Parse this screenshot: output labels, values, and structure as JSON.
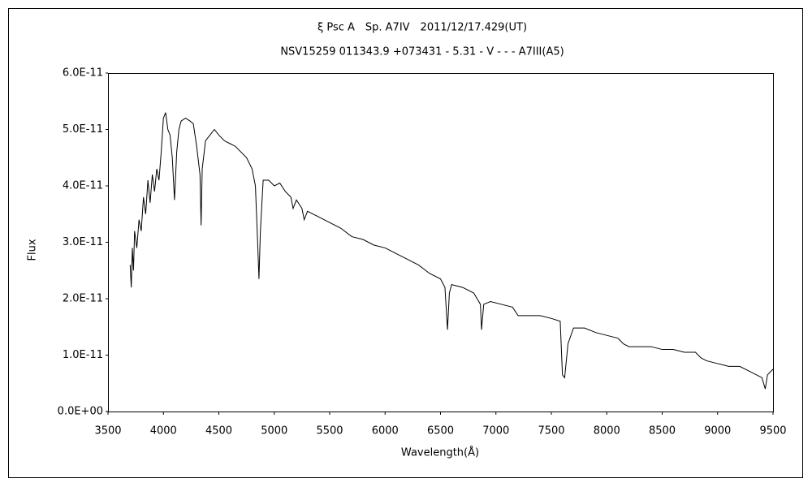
{
  "chart_data": {
    "type": "line",
    "title": "ξ Psc A　Sp. A7IV　2011/12/17.429(UT)",
    "subtitle": "NSV15259 011343.9 +073431 - 5.31 - V - - - A7III(A5)",
    "x_label": "Wavelength(Å)",
    "y_label": "Flux",
    "x": [
      3700,
      3710,
      3720,
      3730,
      3740,
      3760,
      3780,
      3800,
      3820,
      3840,
      3860,
      3880,
      3900,
      3920,
      3940,
      3960,
      3980,
      4000,
      4020,
      4040,
      4060,
      4080,
      4100,
      4120,
      4140,
      4160,
      4200,
      4240,
      4270,
      4300,
      4330,
      4340,
      4350,
      4380,
      4420,
      4460,
      4500,
      4550,
      4600,
      4650,
      4700,
      4750,
      4800,
      4830,
      4850,
      4862,
      4875,
      4900,
      4950,
      5000,
      5050,
      5100,
      5150,
      5170,
      5200,
      5250,
      5270,
      5300,
      5400,
      5500,
      5600,
      5700,
      5800,
      5900,
      6000,
      6100,
      6200,
      6300,
      6400,
      6500,
      6540,
      6563,
      6580,
      6600,
      6700,
      6800,
      6860,
      6870,
      6890,
      6950,
      7050,
      7150,
      7200,
      7300,
      7400,
      7500,
      7580,
      7600,
      7620,
      7650,
      7700,
      7800,
      7900,
      8000,
      8100,
      8150,
      8200,
      8300,
      8400,
      8500,
      8600,
      8700,
      8800,
      8850,
      8900,
      9000,
      9100,
      9200,
      9300,
      9400,
      9430,
      9450,
      9500
    ],
    "series": [
      {
        "name": "Flux",
        "color": "#000000",
        "values": [
          2.6e-11,
          2.2e-11,
          2.9e-11,
          2.5e-11,
          3.2e-11,
          2.9e-11,
          3.4e-11,
          3.2e-11,
          3.8e-11,
          3.5e-11,
          4.1e-11,
          3.7e-11,
          4.2e-11,
          3.9e-11,
          4.3e-11,
          4.1e-11,
          4.6e-11,
          5.2e-11,
          5.3e-11,
          5e-11,
          4.9e-11,
          4.5e-11,
          3.75e-11,
          4.6e-11,
          5e-11,
          5.15e-11,
          5.2e-11,
          5.15e-11,
          5.1e-11,
          4.7e-11,
          4.2e-11,
          3.3e-11,
          4.3e-11,
          4.8e-11,
          4.9e-11,
          5e-11,
          4.9e-11,
          4.8e-11,
          4.75e-11,
          4.7e-11,
          4.6e-11,
          4.5e-11,
          4.3e-11,
          4e-11,
          3e-11,
          2.35e-11,
          3.2e-11,
          4.1e-11,
          4.1e-11,
          4e-11,
          4.05e-11,
          3.9e-11,
          3.8e-11,
          3.6e-11,
          3.75e-11,
          3.6e-11,
          3.4e-11,
          3.55e-11,
          3.45e-11,
          3.35e-11,
          3.25e-11,
          3.1e-11,
          3.05e-11,
          2.95e-11,
          2.9e-11,
          2.8e-11,
          2.7e-11,
          2.6e-11,
          2.45e-11,
          2.35e-11,
          2.2e-11,
          1.45e-11,
          2.1e-11,
          2.25e-11,
          2.2e-11,
          2.1e-11,
          1.9e-11,
          1.45e-11,
          1.9e-11,
          1.95e-11,
          1.9e-11,
          1.85e-11,
          1.7e-11,
          1.7e-11,
          1.7e-11,
          1.65e-11,
          1.6e-11,
          6.5e-12,
          6e-12,
          1.2e-11,
          1.48e-11,
          1.48e-11,
          1.4e-11,
          1.35e-11,
          1.3e-11,
          1.2e-11,
          1.15e-11,
          1.15e-11,
          1.15e-11,
          1.1e-11,
          1.1e-11,
          1.05e-11,
          1.05e-11,
          9.5e-12,
          9e-12,
          8.5e-12,
          8e-12,
          8e-12,
          7e-12,
          6e-12,
          4e-12,
          6.5e-12,
          7.5e-12
        ]
      }
    ],
    "xlim": [
      3500,
      9500
    ],
    "xticks": [
      3500,
      4000,
      4500,
      5000,
      5500,
      6000,
      6500,
      7000,
      7500,
      8000,
      8500,
      9000,
      9500
    ],
    "ylim": [
      0,
      6e-11
    ],
    "yticks": [
      {
        "value": 0,
        "label": "0.0E+00"
      },
      {
        "value": 1e-11,
        "label": "1.0E-11"
      },
      {
        "value": 2e-11,
        "label": "2.0E-11"
      },
      {
        "value": 3e-11,
        "label": "3.0E-11"
      },
      {
        "value": 4e-11,
        "label": "4.0E-11"
      },
      {
        "value": 5e-11,
        "label": "5.0E-11"
      },
      {
        "value": 6e-11,
        "label": "6.0E-11"
      }
    ],
    "grid": false
  }
}
